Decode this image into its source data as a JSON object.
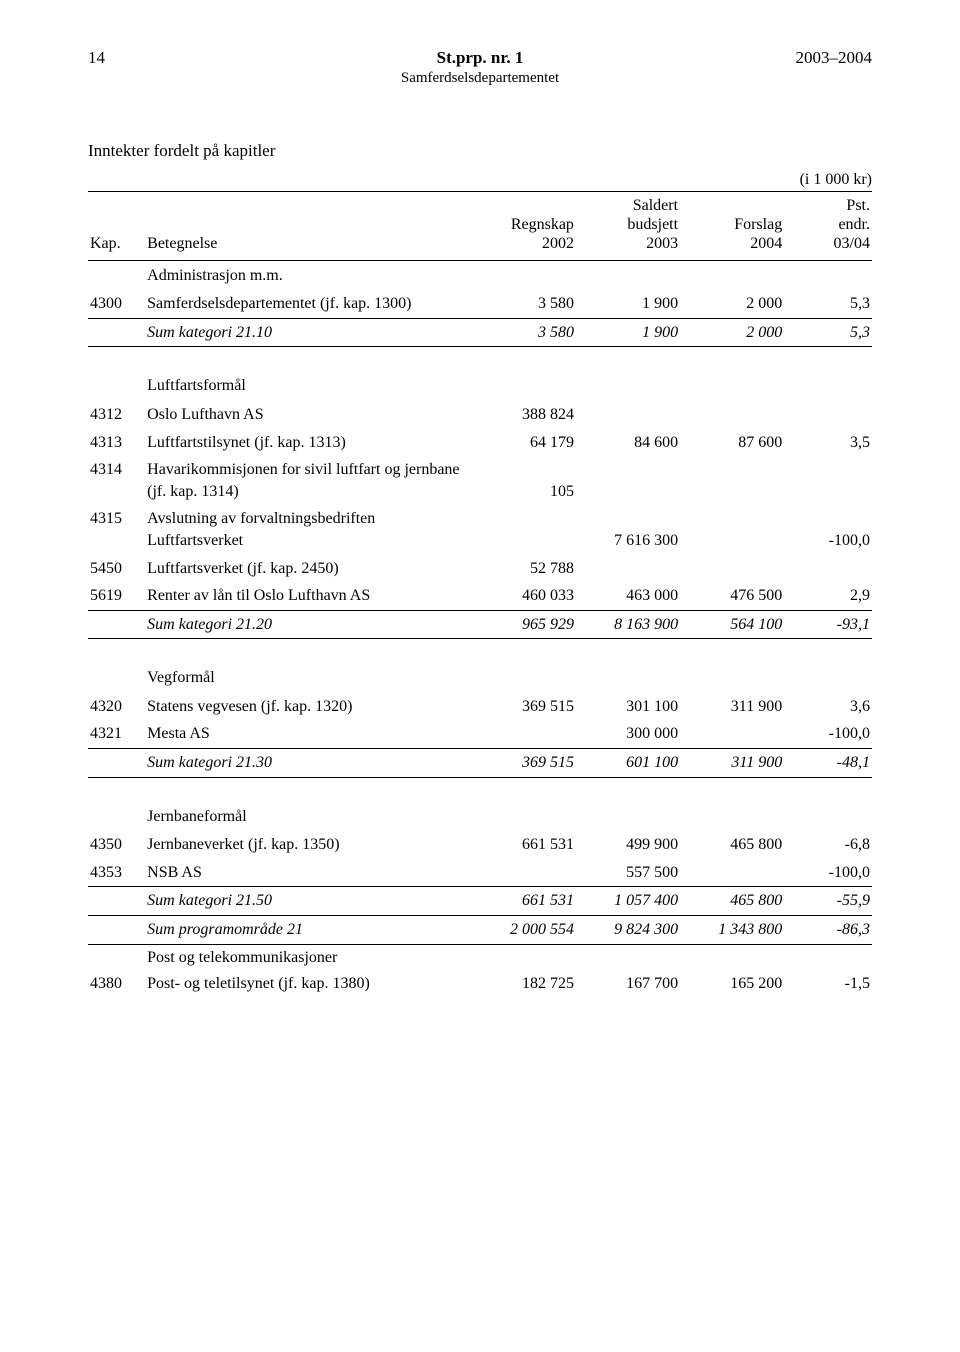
{
  "header": {
    "page_number": "14",
    "doc_title": "St.prp. nr. 1",
    "year_range": "2003–2004",
    "department": "Samferdselsdepartementet"
  },
  "section_title": "Inntekter fordelt på kapitler",
  "unit_label": "(i 1 000 kr)",
  "columns": {
    "kap": "Kap.",
    "bet": "Betegnelse",
    "reg_l1": "Regnskap",
    "reg_l2": "2002",
    "sal_l1": "Saldert",
    "sal_l2": "budsjett",
    "sal_l3": "2003",
    "for_l1": "Forslag",
    "for_l2": "2004",
    "pst_l1": "Pst.",
    "pst_l2": "endr.",
    "pst_l3": "03/04"
  },
  "groups": {
    "admin": {
      "title": "Administrasjon m.m.",
      "r0": {
        "kap": "4300",
        "bet": "Samferdselsdepartementet (jf. kap. 1300)",
        "reg": "3 580",
        "sal": "1 900",
        "for": "2 000",
        "pst": "5,3"
      },
      "sum": {
        "bet": "Sum kategori 21.10",
        "reg": "3 580",
        "sal": "1 900",
        "for": "2 000",
        "pst": "5,3"
      }
    },
    "luft": {
      "title": "Luftfartsformål",
      "r0": {
        "kap": "4312",
        "bet": "Oslo Lufthavn AS",
        "reg": "388 824",
        "sal": "",
        "for": "",
        "pst": ""
      },
      "r1": {
        "kap": "4313",
        "bet": "Luftfartstilsynet (jf. kap. 1313)",
        "reg": "64 179",
        "sal": "84 600",
        "for": "87 600",
        "pst": "3,5"
      },
      "r2": {
        "kap": "4314",
        "bet": "Havarikommisjonen for sivil luftfart og jernbane (jf. kap. 1314)",
        "reg": "105",
        "sal": "",
        "for": "",
        "pst": ""
      },
      "r3": {
        "kap": "4315",
        "bet": "Avslutning av forvaltningsbedriften Luftfartsverket",
        "reg": "",
        "sal": "7 616 300",
        "for": "",
        "pst": "-100,0"
      },
      "r4": {
        "kap": "5450",
        "bet": "Luftfartsverket (jf. kap. 2450)",
        "reg": "52 788",
        "sal": "",
        "for": "",
        "pst": ""
      },
      "r5": {
        "kap": "5619",
        "bet": "Renter av lån til Oslo Lufthavn AS",
        "reg": "460 033",
        "sal": "463 000",
        "for": "476 500",
        "pst": "2,9"
      },
      "sum": {
        "bet": "Sum kategori 21.20",
        "reg": "965 929",
        "sal": "8 163 900",
        "for": "564 100",
        "pst": "-93,1"
      }
    },
    "veg": {
      "title": "Vegformål",
      "r0": {
        "kap": "4320",
        "bet": "Statens vegvesen (jf. kap. 1320)",
        "reg": "369 515",
        "sal": "301 100",
        "for": "311 900",
        "pst": "3,6"
      },
      "r1": {
        "kap": "4321",
        "bet": "Mesta AS",
        "reg": "",
        "sal": "300 000",
        "for": "",
        "pst": "-100,0"
      },
      "sum": {
        "bet": "Sum kategori 21.30",
        "reg": "369 515",
        "sal": "601 100",
        "for": "311 900",
        "pst": "-48,1"
      }
    },
    "jernbane": {
      "title": "Jernbaneformål",
      "r0": {
        "kap": "4350",
        "bet": "Jernbaneverket (jf. kap. 1350)",
        "reg": "661 531",
        "sal": "499 900",
        "for": "465 800",
        "pst": "-6,8"
      },
      "r1": {
        "kap": "4353",
        "bet": "NSB AS",
        "reg": "",
        "sal": "557 500",
        "for": "",
        "pst": "-100,0"
      },
      "sum": {
        "bet": "Sum kategori 21.50",
        "reg": "661 531",
        "sal": "1 057 400",
        "for": "465 800",
        "pst": "-55,9"
      },
      "sum2": {
        "bet": "Sum programområde 21",
        "reg": "2 000 554",
        "sal": "9 824 300",
        "for": "1 343 800",
        "pst": "-86,3"
      }
    },
    "post": {
      "title": "Post og telekommunikasjoner",
      "r0": {
        "kap": "4380",
        "bet": "Post- og teletilsynet (jf. kap. 1380)",
        "reg": "182 725",
        "sal": "167 700",
        "for": "165 200",
        "pst": "-1,5"
      }
    }
  }
}
